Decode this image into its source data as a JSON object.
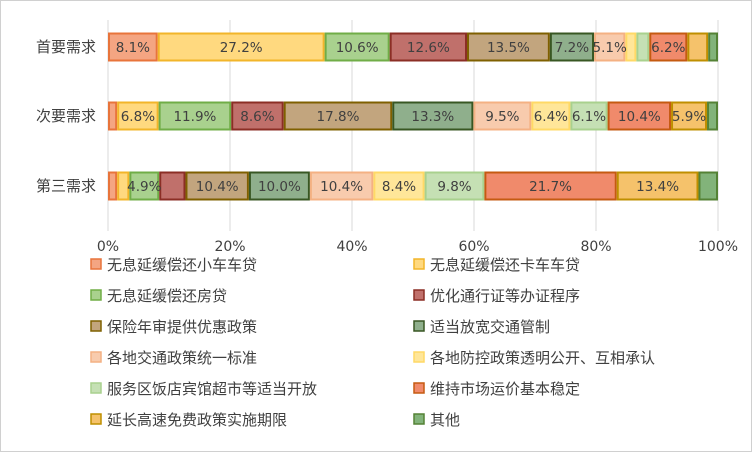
{
  "chart_data": {
    "type": "bar",
    "orientation": "horizontal",
    "stacked": "percent",
    "categories": [
      "首要需求",
      "次要需求",
      "第三需求"
    ],
    "series": [
      {
        "name": "无息延缓偿还小车车贷",
        "color": "#F4A582",
        "stroke": "#E8743B",
        "values": [
          8.1,
          1.5,
          1.5
        ],
        "labels": [
          "8.1%",
          "",
          ""
        ]
      },
      {
        "name": "无息延缓偿还卡车车贷",
        "color": "#FFD97F",
        "stroke": "#F2B52A",
        "values": [
          27.2,
          6.8,
          2.0
        ],
        "labels": [
          "27.2%",
          "6.8%",
          ""
        ]
      },
      {
        "name": "无息延缓偿还房贷",
        "color": "#A9D18E",
        "stroke": "#70AD47",
        "values": [
          10.6,
          11.9,
          4.9
        ],
        "labels": [
          "10.6%",
          "11.9%",
          "4.9%"
        ]
      },
      {
        "name": "优化通行证等办证程序",
        "color": "#C0706B",
        "stroke": "#8B2E25",
        "values": [
          12.6,
          8.6,
          4.3
        ],
        "labels": [
          "12.6%",
          "8.6%",
          ""
        ]
      },
      {
        "name": "保险年审提供优惠政策",
        "color": "#C2A57E",
        "stroke": "#7F6000",
        "values": [
          13.5,
          17.8,
          10.4
        ],
        "labels": [
          "13.5%",
          "17.8%",
          "10.4%"
        ]
      },
      {
        "name": "适当放宽交通管制",
        "color": "#8FAF8C",
        "stroke": "#385723",
        "values": [
          7.2,
          13.3,
          10.0
        ],
        "labels": [
          "7.2%",
          "13.3%",
          "10.0%"
        ]
      },
      {
        "name": "各地交通政策统一标准",
        "color": "#F8CBAD",
        "stroke": "#F4B183",
        "values": [
          5.1,
          9.5,
          10.4
        ],
        "labels": [
          "5.1%",
          "9.5%",
          "10.4%"
        ]
      },
      {
        "name": "各地防控政策透明公开、互相承认",
        "color": "#FFE699",
        "stroke": "#FFD966",
        "values": [
          1.8,
          6.4,
          8.4
        ],
        "labels": [
          "",
          "6.4%",
          "8.4%"
        ]
      },
      {
        "name": "服务区饭店宾馆超市等适当开放",
        "color": "#C5E0B4",
        "stroke": "#A9D18E",
        "values": [
          2.1,
          6.1,
          9.8
        ],
        "labels": [
          "",
          "6.1%",
          "9.8%"
        ]
      },
      {
        "name": "维持市场运价基本稳定",
        "color": "#F08A6B",
        "stroke": "#C55A11",
        "values": [
          6.2,
          10.4,
          21.7
        ],
        "labels": [
          "6.2%",
          "10.4%",
          "21.7%"
        ]
      },
      {
        "name": "延长高速免费政策实施期限",
        "color": "#F5C26B",
        "stroke": "#BF8F00",
        "values": [
          3.4,
          5.9,
          13.4
        ],
        "labels": [
          "",
          "5.9%",
          "13.4%"
        ]
      },
      {
        "name": "其他",
        "color": "#82B37A",
        "stroke": "#548235",
        "values": [
          1.6,
          1.8,
          3.2
        ],
        "labels": [
          "",
          "",
          ""
        ]
      }
    ],
    "xlim": [
      0,
      100
    ],
    "xticks": [
      "0%",
      "20%",
      "40%",
      "60%",
      "80%",
      "100%"
    ],
    "grid": true,
    "legend_position": "bottom",
    "title": "",
    "xlabel": "",
    "ylabel": ""
  }
}
